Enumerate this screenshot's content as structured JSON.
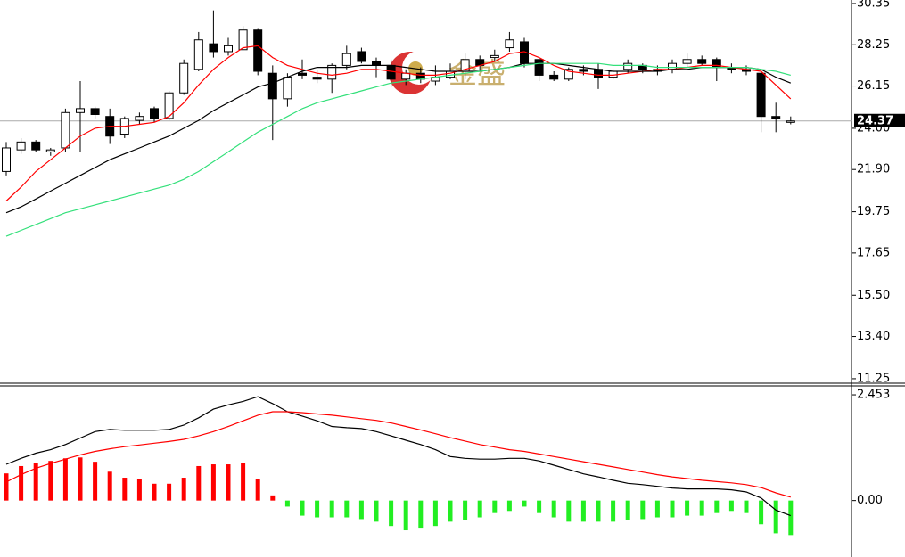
{
  "chart_data": [
    {
      "type": "candlestick",
      "open": [
        21.8,
        22.9,
        23.3,
        22.8,
        23.0,
        24.8,
        25.0,
        24.6,
        23.7,
        24.4,
        25.0,
        24.5,
        25.8,
        27.0,
        28.3,
        27.9,
        28.0,
        29.0,
        26.8,
        25.5,
        26.8,
        26.6,
        26.5,
        27.2,
        27.9,
        27.4,
        27.2,
        26.5,
        26.8,
        26.4,
        26.6,
        26.9,
        27.5,
        27.6,
        28.1,
        28.4,
        27.5,
        26.7,
        26.5,
        27.0,
        27.0,
        26.6,
        27.0,
        27.2,
        27.0,
        27.0,
        27.3,
        27.5,
        27.5,
        27.1,
        27.0,
        26.8,
        24.6,
        24.3
      ],
      "high": [
        23.3,
        23.5,
        23.4,
        23.0,
        25.0,
        26.4,
        25.1,
        25.0,
        24.6,
        24.8,
        25.1,
        25.9,
        27.5,
        28.9,
        30.0,
        28.6,
        29.2,
        29.1,
        27.2,
        26.8,
        27.5,
        27.0,
        27.3,
        28.2,
        28.1,
        27.6,
        27.5,
        27.0,
        27.1,
        27.2,
        27.3,
        27.8,
        27.7,
        28.0,
        28.9,
        28.6,
        27.6,
        26.9,
        27.1,
        27.2,
        27.3,
        27.0,
        27.5,
        27.3,
        27.2,
        27.5,
        27.8,
        27.7,
        27.6,
        27.3,
        27.2,
        27.0,
        25.3,
        24.6
      ],
      "low": [
        21.6,
        22.7,
        22.8,
        22.6,
        22.8,
        22.8,
        24.5,
        23.2,
        23.5,
        24.2,
        24.3,
        24.4,
        25.7,
        26.9,
        27.6,
        27.7,
        28.0,
        26.7,
        23.4,
        25.1,
        26.5,
        26.3,
        25.8,
        27.0,
        27.3,
        26.6,
        26.1,
        26.2,
        26.3,
        26.2,
        26.5,
        26.5,
        26.9,
        27.4,
        27.9,
        27.1,
        26.4,
        26.4,
        26.4,
        26.7,
        26.0,
        26.5,
        26.8,
        26.8,
        26.7,
        26.8,
        27.1,
        27.2,
        26.4,
        26.8,
        26.7,
        23.8,
        23.8,
        24.2
      ],
      "close": [
        23.0,
        23.3,
        22.9,
        22.9,
        24.8,
        25.0,
        24.7,
        23.6,
        24.5,
        24.6,
        24.5,
        25.8,
        27.3,
        28.5,
        27.9,
        28.2,
        29.0,
        26.9,
        25.5,
        26.6,
        26.7,
        26.5,
        27.2,
        27.8,
        27.4,
        27.2,
        26.5,
        26.8,
        26.5,
        26.6,
        26.9,
        27.5,
        27.2,
        27.7,
        28.5,
        27.3,
        26.7,
        26.5,
        27.0,
        26.9,
        26.6,
        26.9,
        27.3,
        27.0,
        26.9,
        27.3,
        27.5,
        27.3,
        27.1,
        27.0,
        26.9,
        24.6,
        24.5,
        24.37
      ],
      "up_color": "#ffffff",
      "down_color": "#000000",
      "lines": [
        {
          "color": "#ff0000",
          "values": [
            20.3,
            21.0,
            21.8,
            22.4,
            23.0,
            23.6,
            24.0,
            24.1,
            24.1,
            24.2,
            24.3,
            24.6,
            25.3,
            26.2,
            27.0,
            27.6,
            28.1,
            28.2,
            27.6,
            27.2,
            27.0,
            26.8,
            26.7,
            26.8,
            27.0,
            27.0,
            26.9,
            26.8,
            26.7,
            26.7,
            26.8,
            27.0,
            27.2,
            27.4,
            27.8,
            27.9,
            27.6,
            27.2,
            26.9,
            26.8,
            26.7,
            26.7,
            26.8,
            26.9,
            27.0,
            27.0,
            27.1,
            27.2,
            27.2,
            27.1,
            27.0,
            26.9,
            26.2,
            25.5
          ]
        },
        {
          "color": "#000000",
          "values": [
            19.7,
            20.0,
            20.4,
            20.8,
            21.2,
            21.6,
            22.0,
            22.4,
            22.7,
            23.0,
            23.3,
            23.6,
            24.0,
            24.4,
            24.9,
            25.3,
            25.7,
            26.1,
            26.3,
            26.6,
            26.9,
            27.1,
            27.1,
            27.1,
            27.2,
            27.2,
            27.2,
            27.1,
            27.0,
            26.9,
            26.9,
            26.9,
            26.9,
            27.0,
            27.1,
            27.3,
            27.3,
            27.3,
            27.2,
            27.1,
            27.0,
            26.9,
            26.9,
            26.9,
            26.9,
            27.0,
            27.0,
            27.1,
            27.1,
            27.1,
            27.1,
            27.0,
            26.6,
            26.3
          ]
        },
        {
          "color": "#33e07a",
          "values": [
            18.5,
            18.8,
            19.1,
            19.4,
            19.7,
            19.9,
            20.1,
            20.3,
            20.5,
            20.7,
            20.9,
            21.1,
            21.4,
            21.8,
            22.3,
            22.8,
            23.3,
            23.8,
            24.2,
            24.6,
            25.0,
            25.3,
            25.5,
            25.7,
            25.9,
            26.1,
            26.3,
            26.4,
            26.5,
            26.6,
            26.7,
            26.8,
            26.9,
            27.0,
            27.1,
            27.2,
            27.3,
            27.3,
            27.3,
            27.3,
            27.3,
            27.2,
            27.2,
            27.2,
            27.1,
            27.1,
            27.1,
            27.1,
            27.1,
            27.1,
            27.1,
            27.0,
            26.9,
            26.7
          ]
        }
      ],
      "last_price": 24.37,
      "watermark": "金盛",
      "ylim": [
        11.02,
        30.53
      ],
      "yticks": [
        11.25,
        {
          "value": 13.4,
          "label": "13.40"
        },
        {
          "value": 15.5,
          "label": "15.50"
        },
        17.65,
        19.75,
        {
          "value": 21.9,
          "label": "21.90"
        },
        {
          "value": 24,
          "label": "24.00"
        },
        26.15,
        28.25,
        30.35
      ]
    },
    {
      "type": "macd",
      "histogram": {
        "up_color": "#ff0000",
        "down_color": "#22ee22",
        "values": [
          0.63,
          0.8,
          0.88,
          0.92,
          0.98,
          1.0,
          0.9,
          0.67,
          0.53,
          0.49,
          0.39,
          0.39,
          0.53,
          0.8,
          0.84,
          0.84,
          0.88,
          0.51,
          0.12,
          -0.14,
          -0.35,
          -0.39,
          -0.39,
          -0.39,
          -0.43,
          -0.49,
          -0.59,
          -0.69,
          -0.65,
          -0.59,
          -0.49,
          -0.45,
          -0.39,
          -0.29,
          -0.24,
          -0.14,
          -0.29,
          -0.39,
          -0.49,
          -0.49,
          -0.49,
          -0.49,
          -0.45,
          -0.43,
          -0.39,
          -0.39,
          -0.35,
          -0.35,
          -0.29,
          -0.24,
          -0.29,
          -0.55,
          -0.76,
          -0.8
        ]
      },
      "lines": [
        {
          "color": "#000000",
          "values": [
            0.84,
            0.98,
            1.1,
            1.18,
            1.3,
            1.45,
            1.6,
            1.65,
            1.63,
            1.63,
            1.63,
            1.65,
            1.75,
            1.92,
            2.12,
            2.22,
            2.3,
            2.41,
            2.25,
            2.06,
            1.96,
            1.85,
            1.72,
            1.69,
            1.67,
            1.6,
            1.5,
            1.4,
            1.3,
            1.18,
            1.02,
            0.98,
            0.96,
            0.96,
            0.98,
            0.98,
            0.92,
            0.82,
            0.72,
            0.62,
            0.55,
            0.47,
            0.4,
            0.37,
            0.33,
            0.29,
            0.27,
            0.27,
            0.27,
            0.25,
            0.2,
            0.06,
            -0.22,
            -0.35
          ]
        },
        {
          "color": "#ff0000",
          "values": [
            0.43,
            0.6,
            0.75,
            0.86,
            0.96,
            1.06,
            1.14,
            1.2,
            1.25,
            1.29,
            1.33,
            1.37,
            1.42,
            1.5,
            1.6,
            1.72,
            1.85,
            1.98,
            2.06,
            2.06,
            2.04,
            2.01,
            1.98,
            1.94,
            1.9,
            1.86,
            1.8,
            1.72,
            1.64,
            1.55,
            1.46,
            1.38,
            1.3,
            1.24,
            1.18,
            1.14,
            1.08,
            1.02,
            0.96,
            0.9,
            0.84,
            0.78,
            0.72,
            0.66,
            0.6,
            0.55,
            0.51,
            0.47,
            0.44,
            0.41,
            0.37,
            0.3,
            0.18,
            0.08
          ]
        }
      ],
      "ylim": [
        -1.31,
        2.64
      ],
      "yticks": [
        {
          "value": 0,
          "label": "0.00"
        },
        2.453
      ]
    }
  ]
}
